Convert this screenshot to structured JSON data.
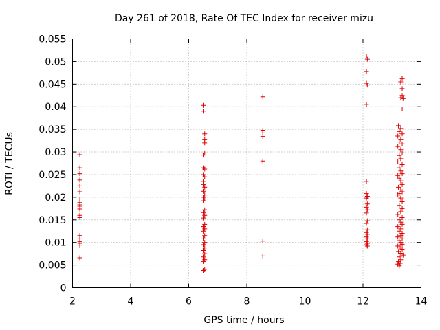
{
  "chart_data": {
    "type": "scatter",
    "title": "Day 261 of 2018, Rate Of TEC Index for receiver mizu",
    "xlabel": "GPS time / hours",
    "ylabel": "ROTI / TECUs",
    "xlim": [
      2,
      14
    ],
    "ylim": [
      0,
      0.055
    ],
    "xticks": [
      2,
      4,
      6,
      8,
      10,
      12,
      14
    ],
    "xtick_labels": [
      "2",
      "4",
      "6",
      "8",
      "10",
      "12",
      "14"
    ],
    "yticks": [
      0,
      0.005,
      0.01,
      0.015,
      0.02,
      0.025,
      0.03,
      0.035,
      0.04,
      0.045,
      0.05,
      0.055
    ],
    "ytick_labels": [
      "0",
      "0.005",
      "0.01",
      "0.015",
      "0.02",
      "0.025",
      "0.03",
      "0.035",
      "0.04",
      "0.045",
      "0.05",
      "0.055"
    ],
    "grid": true,
    "marker": "+",
    "color": "#e00000",
    "series": [
      {
        "name": "ROTI",
        "points": [
          [
            2.25,
            0.0294
          ],
          [
            2.25,
            0.0265
          ],
          [
            2.25,
            0.0252
          ],
          [
            2.25,
            0.0238
          ],
          [
            2.25,
            0.0225
          ],
          [
            2.25,
            0.0212
          ],
          [
            2.25,
            0.0196
          ],
          [
            2.25,
            0.0188
          ],
          [
            2.25,
            0.0183
          ],
          [
            2.25,
            0.018
          ],
          [
            2.25,
            0.0174
          ],
          [
            2.25,
            0.016
          ],
          [
            2.25,
            0.0155
          ],
          [
            2.25,
            0.0115
          ],
          [
            2.25,
            0.0108
          ],
          [
            2.25,
            0.0102
          ],
          [
            2.25,
            0.0098
          ],
          [
            2.25,
            0.0094
          ],
          [
            2.25,
            0.0066
          ],
          [
            6.52,
            0.0403
          ],
          [
            6.52,
            0.039
          ],
          [
            6.55,
            0.034
          ],
          [
            6.55,
            0.0328
          ],
          [
            6.55,
            0.032
          ],
          [
            6.55,
            0.0298
          ],
          [
            6.52,
            0.0293
          ],
          [
            6.52,
            0.0265
          ],
          [
            6.55,
            0.0262
          ],
          [
            6.52,
            0.025
          ],
          [
            6.55,
            0.0245
          ],
          [
            6.52,
            0.0235
          ],
          [
            6.52,
            0.0228
          ],
          [
            6.55,
            0.0222
          ],
          [
            6.52,
            0.0213
          ],
          [
            6.55,
            0.0205
          ],
          [
            6.52,
            0.02
          ],
          [
            6.55,
            0.0196
          ],
          [
            6.52,
            0.0192
          ],
          [
            6.55,
            0.0172
          ],
          [
            6.52,
            0.0166
          ],
          [
            6.55,
            0.016
          ],
          [
            6.52,
            0.0154
          ],
          [
            6.55,
            0.014
          ],
          [
            6.52,
            0.0135
          ],
          [
            6.55,
            0.013
          ],
          [
            6.52,
            0.0125
          ],
          [
            6.55,
            0.0115
          ],
          [
            6.52,
            0.0108
          ],
          [
            6.55,
            0.01
          ],
          [
            6.52,
            0.0095
          ],
          [
            6.55,
            0.0088
          ],
          [
            6.52,
            0.0082
          ],
          [
            6.55,
            0.0075
          ],
          [
            6.52,
            0.0068
          ],
          [
            6.55,
            0.0062
          ],
          [
            6.52,
            0.0058
          ],
          [
            6.55,
            0.004
          ],
          [
            6.52,
            0.0038
          ],
          [
            8.55,
            0.0422
          ],
          [
            8.55,
            0.0348
          ],
          [
            8.55,
            0.0342
          ],
          [
            8.55,
            0.0334
          ],
          [
            8.55,
            0.028
          ],
          [
            8.55,
            0.0103
          ],
          [
            8.55,
            0.007
          ],
          [
            12.12,
            0.0512
          ],
          [
            12.15,
            0.0505
          ],
          [
            12.12,
            0.0478
          ],
          [
            12.12,
            0.0452
          ],
          [
            12.15,
            0.0448
          ],
          [
            12.12,
            0.0405
          ],
          [
            12.12,
            0.0235
          ],
          [
            12.12,
            0.0208
          ],
          [
            12.15,
            0.0202
          ],
          [
            12.12,
            0.0198
          ],
          [
            12.15,
            0.0185
          ],
          [
            12.12,
            0.0178
          ],
          [
            12.15,
            0.0172
          ],
          [
            12.12,
            0.0165
          ],
          [
            12.15,
            0.0148
          ],
          [
            12.12,
            0.0142
          ],
          [
            12.15,
            0.0128
          ],
          [
            12.12,
            0.0122
          ],
          [
            12.15,
            0.0118
          ],
          [
            12.12,
            0.0112
          ],
          [
            12.15,
            0.0108
          ],
          [
            12.12,
            0.0102
          ],
          [
            12.15,
            0.0098
          ],
          [
            12.12,
            0.0095
          ],
          [
            12.15,
            0.0092
          ],
          [
            13.35,
            0.0462
          ],
          [
            13.3,
            0.0455
          ],
          [
            13.35,
            0.044
          ],
          [
            13.35,
            0.0425
          ],
          [
            13.3,
            0.042
          ],
          [
            13.38,
            0.0418
          ],
          [
            13.35,
            0.0395
          ],
          [
            13.22,
            0.0358
          ],
          [
            13.3,
            0.0352
          ],
          [
            13.25,
            0.0345
          ],
          [
            13.35,
            0.034
          ],
          [
            13.2,
            0.0335
          ],
          [
            13.3,
            0.0328
          ],
          [
            13.25,
            0.0322
          ],
          [
            13.35,
            0.0318
          ],
          [
            13.2,
            0.0312
          ],
          [
            13.3,
            0.0305
          ],
          [
            13.35,
            0.0298
          ],
          [
            13.25,
            0.0292
          ],
          [
            13.3,
            0.0285
          ],
          [
            13.2,
            0.0278
          ],
          [
            13.35,
            0.0272
          ],
          [
            13.25,
            0.0265
          ],
          [
            13.3,
            0.0258
          ],
          [
            13.35,
            0.0252
          ],
          [
            13.2,
            0.0248
          ],
          [
            13.25,
            0.0242
          ],
          [
            13.3,
            0.0236
          ],
          [
            13.35,
            0.0228
          ],
          [
            13.22,
            0.0222
          ],
          [
            13.3,
            0.0216
          ],
          [
            13.35,
            0.0212
          ],
          [
            13.25,
            0.0208
          ],
          [
            13.2,
            0.0205
          ],
          [
            13.3,
            0.0198
          ],
          [
            13.35,
            0.019
          ],
          [
            13.25,
            0.0182
          ],
          [
            13.35,
            0.0175
          ],
          [
            13.3,
            0.0168
          ],
          [
            13.2,
            0.0162
          ],
          [
            13.35,
            0.0155
          ],
          [
            13.25,
            0.015
          ],
          [
            13.3,
            0.0145
          ],
          [
            13.35,
            0.014
          ],
          [
            13.2,
            0.0135
          ],
          [
            13.3,
            0.013
          ],
          [
            13.25,
            0.0125
          ],
          [
            13.35,
            0.012
          ],
          [
            13.3,
            0.0115
          ],
          [
            13.2,
            0.0112
          ],
          [
            13.35,
            0.0108
          ],
          [
            13.25,
            0.0104
          ],
          [
            13.3,
            0.01
          ],
          [
            13.35,
            0.0096
          ],
          [
            13.2,
            0.0092
          ],
          [
            13.28,
            0.0088
          ],
          [
            13.35,
            0.0085
          ],
          [
            13.22,
            0.008
          ],
          [
            13.3,
            0.0076
          ],
          [
            13.38,
            0.0072
          ],
          [
            13.25,
            0.0068
          ],
          [
            13.3,
            0.0062
          ],
          [
            13.22,
            0.0058
          ],
          [
            13.28,
            0.0054
          ],
          [
            13.2,
            0.0052
          ],
          [
            13.25,
            0.0048
          ]
        ]
      }
    ]
  }
}
